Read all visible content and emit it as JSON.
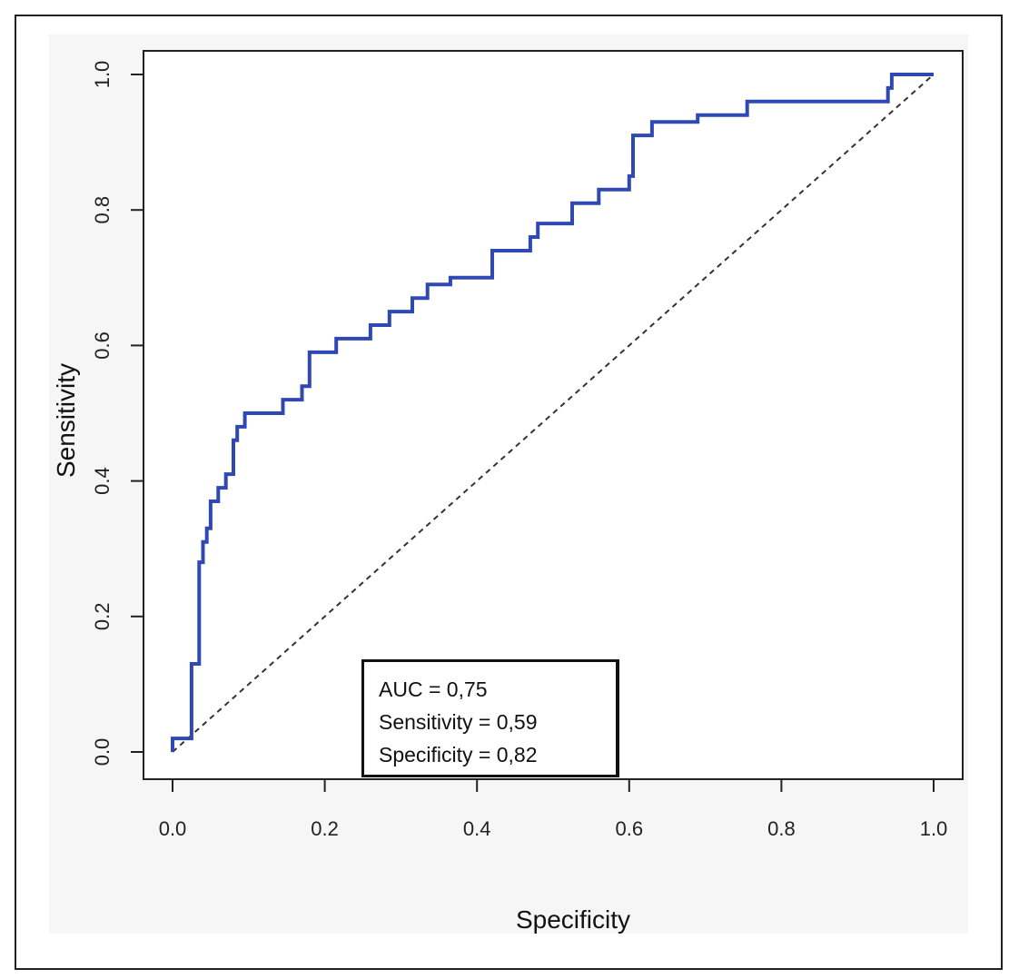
{
  "chart_data": {
    "type": "line",
    "title": "",
    "xlabel": "Specificity",
    "ylabel": "Sensitivity",
    "xlim": [
      0.0,
      1.0
    ],
    "ylim": [
      0.0,
      1.0
    ],
    "x_ticks": [
      "0.0",
      "0.2",
      "0.4",
      "0.6",
      "0.8",
      "1.0"
    ],
    "y_ticks": [
      "0.0",
      "0.2",
      "0.4",
      "0.6",
      "0.8",
      "1.0"
    ],
    "grid": false,
    "series": [
      {
        "color": "#2f48b4",
        "style": "step",
        "points": [
          [
            0.0,
            0.0
          ],
          [
            0.0,
            0.02
          ],
          [
            0.025,
            0.02
          ],
          [
            0.025,
            0.13
          ],
          [
            0.035,
            0.13
          ],
          [
            0.035,
            0.28
          ],
          [
            0.04,
            0.28
          ],
          [
            0.04,
            0.31
          ],
          [
            0.045,
            0.31
          ],
          [
            0.045,
            0.33
          ],
          [
            0.05,
            0.33
          ],
          [
            0.05,
            0.37
          ],
          [
            0.06,
            0.37
          ],
          [
            0.06,
            0.39
          ],
          [
            0.07,
            0.39
          ],
          [
            0.07,
            0.41
          ],
          [
            0.08,
            0.41
          ],
          [
            0.08,
            0.46
          ],
          [
            0.085,
            0.46
          ],
          [
            0.085,
            0.48
          ],
          [
            0.095,
            0.48
          ],
          [
            0.095,
            0.5
          ],
          [
            0.145,
            0.5
          ],
          [
            0.145,
            0.52
          ],
          [
            0.17,
            0.52
          ],
          [
            0.17,
            0.54
          ],
          [
            0.18,
            0.54
          ],
          [
            0.18,
            0.59
          ],
          [
            0.215,
            0.59
          ],
          [
            0.215,
            0.61
          ],
          [
            0.26,
            0.61
          ],
          [
            0.26,
            0.63
          ],
          [
            0.285,
            0.63
          ],
          [
            0.285,
            0.65
          ],
          [
            0.315,
            0.65
          ],
          [
            0.315,
            0.67
          ],
          [
            0.335,
            0.67
          ],
          [
            0.335,
            0.69
          ],
          [
            0.365,
            0.69
          ],
          [
            0.365,
            0.7
          ],
          [
            0.42,
            0.7
          ],
          [
            0.42,
            0.74
          ],
          [
            0.47,
            0.74
          ],
          [
            0.47,
            0.76
          ],
          [
            0.48,
            0.76
          ],
          [
            0.48,
            0.78
          ],
          [
            0.525,
            0.78
          ],
          [
            0.525,
            0.81
          ],
          [
            0.56,
            0.81
          ],
          [
            0.56,
            0.83
          ],
          [
            0.6,
            0.83
          ],
          [
            0.6,
            0.85
          ],
          [
            0.605,
            0.85
          ],
          [
            0.605,
            0.91
          ],
          [
            0.63,
            0.91
          ],
          [
            0.63,
            0.93
          ],
          [
            0.69,
            0.93
          ],
          [
            0.69,
            0.94
          ],
          [
            0.755,
            0.94
          ],
          [
            0.755,
            0.96
          ],
          [
            0.94,
            0.96
          ],
          [
            0.94,
            0.98
          ],
          [
            0.945,
            0.98
          ],
          [
            0.945,
            1.0
          ],
          [
            1.0,
            1.0
          ]
        ]
      },
      {
        "color": "#333333",
        "style": "dashed",
        "points": [
          [
            0.0,
            0.0
          ],
          [
            1.0,
            1.0
          ]
        ]
      }
    ],
    "annotations": {
      "auc": "AUC = 0,75",
      "sensitivity": "Sensitivity = 0,59",
      "specificity": "Specificity = 0,82"
    }
  }
}
